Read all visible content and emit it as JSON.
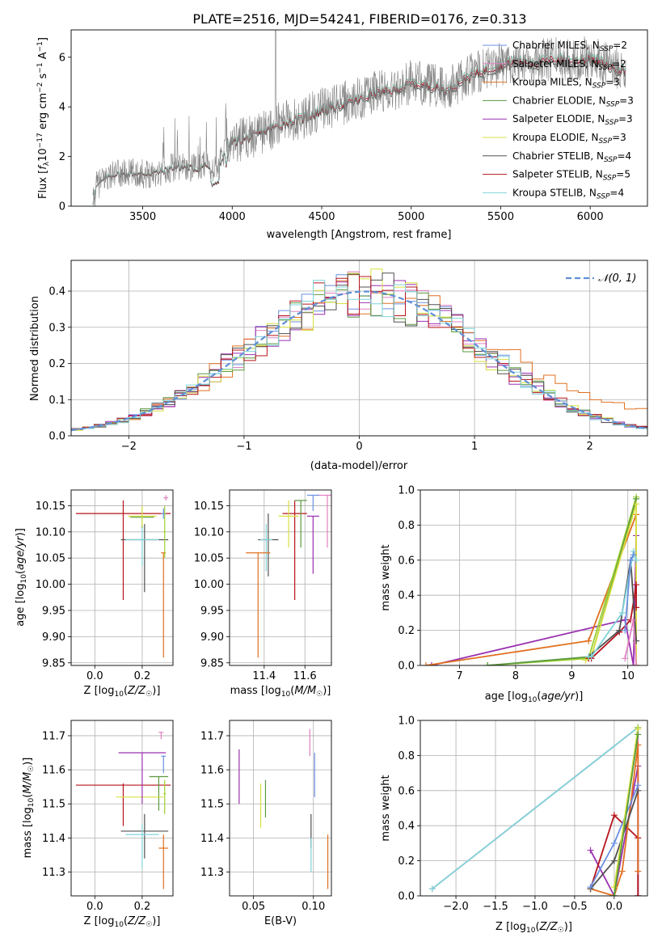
{
  "figure": {
    "title": "PLATE=2516, MJD=54241, FIBERID=0176, z=0.313"
  },
  "colors": {
    "grey": "#808080",
    "red": "#b5151c",
    "orange": "#e07020",
    "purple": "#9b30b0",
    "green": "#5a9a40",
    "yellowgreen": "#c6e03a",
    "lime": "#9fd02f",
    "lightgreen": "#8cc08c",
    "cyan": "#7fd4d8",
    "blue": "#6a90e0",
    "pink": "#e080c0",
    "darkgrey": "#505050",
    "gauss": "#5f8fd5"
  },
  "chart_data": [
    {
      "id": "spectrum",
      "type": "line",
      "xlabel": "wavelength [Angstrom, rest frame]",
      "ylabel": "Flux [f_λ 10^-17 erg cm^-2 s^-1 A^-1]",
      "xlim": [
        3100,
        6320
      ],
      "ylim": [
        0,
        7.1
      ],
      "xticks": [
        3500,
        4000,
        4500,
        5000,
        5500,
        6000
      ],
      "yticks": [
        0,
        2,
        4,
        6
      ],
      "grid": false,
      "legend_position": "right",
      "series": [
        {
          "name": "Chabrier MILES, N_SSP=2",
          "color": "#6a90e0"
        },
        {
          "name": "Salpeter MILES, N_SSP=2",
          "color": "#e080c0"
        },
        {
          "name": "Kroupa MILES, N_SSP=3",
          "color": "#e07020"
        },
        {
          "name": "Chabrier ELODIE, N_SSP=3",
          "color": "#5a9a40"
        },
        {
          "name": "Salpeter ELODIE, N_SSP=3",
          "color": "#9b30b0"
        },
        {
          "name": "Kroupa ELODIE, N_SSP=3",
          "color": "#d8e040"
        },
        {
          "name": "Chabrier STELIB, N_SSP=4",
          "color": "#505050"
        },
        {
          "name": "Salpeter STELIB, N_SSP=5",
          "color": "#b5151c"
        },
        {
          "name": "Kroupa STELIB, N_SSP=4",
          "color": "#7fd4d8"
        }
      ],
      "continuum_x": [
        3220,
        3240,
        3300,
        3350,
        3400,
        3450,
        3500,
        3550,
        3600,
        3650,
        3700,
        3750,
        3800,
        3850,
        3900,
        3950,
        4000,
        4100,
        4200,
        4300,
        4400,
        4500,
        4600,
        4700,
        4800,
        4900,
        5000,
        5100,
        5200,
        5300,
        5400,
        5500,
        5600,
        5700,
        5800,
        5900,
        6000,
        6100,
        6200
      ],
      "continuum_y": [
        0.0,
        0.8,
        1.2,
        1.3,
        1.3,
        1.35,
        1.3,
        1.35,
        1.4,
        1.55,
        1.6,
        1.6,
        1.5,
        1.7,
        1.4,
        2.0,
        2.6,
        2.8,
        3.1,
        3.4,
        3.6,
        3.9,
        4.1,
        4.3,
        4.6,
        4.7,
        5.0,
        4.9,
        4.7,
        5.2,
        5.5,
        5.7,
        5.9,
        5.8,
        6.0,
        5.9,
        6.0,
        5.7,
        5.5
      ]
    },
    {
      "id": "residuals",
      "type": "histogram",
      "xlabel": "(data-model)/error",
      "ylabel": "Normed distribution",
      "xlim": [
        -2.5,
        2.5
      ],
      "ylim": [
        0,
        0.485
      ],
      "xticks": [
        -2,
        -1,
        0,
        1,
        2
      ],
      "yticks": [
        0.0,
        0.1,
        0.2,
        0.3,
        0.4
      ],
      "grid": true,
      "legend": "𝒩(0, 1)",
      "legend_position": "top-right",
      "bin_width": 0.1
    },
    {
      "id": "age-vs-Z",
      "type": "errorbar",
      "xlabel": "Z [log10(Z/Z☉)]",
      "ylabel": "age  [log10(age/yr)]",
      "xlim": [
        -0.1,
        0.33
      ],
      "ylim": [
        9.845,
        10.18
      ],
      "xticks": [
        0.0,
        0.2
      ],
      "yticks": [
        9.85,
        9.9,
        9.95,
        10.0,
        10.05,
        10.1,
        10.15
      ],
      "grid": true,
      "points": [
        {
          "x": 0.12,
          "y": 10.135,
          "xerr": 0.2,
          "yerr": [
            0.165,
            0.025
          ],
          "color": "#b5151c"
        },
        {
          "x": 0.21,
          "y": 10.085,
          "xerr": 0.1,
          "yerr": [
            0.1,
            0.03
          ],
          "color": "#505050"
        },
        {
          "x": 0.2,
          "y": 10.085,
          "xerr": 0.07,
          "yerr": [
            0.05,
            0.03
          ],
          "color": "#7fd4d8"
        },
        {
          "x": 0.2,
          "y": 10.128,
          "xerr": 0.05,
          "yerr": [
            0.02,
            0.02
          ],
          "color": "#5a9a40"
        },
        {
          "x": 0.2,
          "y": 10.13,
          "xerr": 0.06,
          "yerr": [
            0.02,
            0.02
          ],
          "color": "#d8e040"
        },
        {
          "x": 0.3,
          "y": 10.165,
          "xerr": 0.01,
          "yerr": [
            0.005,
            0.005
          ],
          "color": "#e080c0"
        },
        {
          "x": 0.29,
          "y": 10.135,
          "xerr": 0.01,
          "yerr": [
            0.01,
            0.01
          ],
          "color": "#6a90e0"
        },
        {
          "x": 0.29,
          "y": 10.06,
          "xerr": 0.01,
          "yerr": [
            0.2,
            0.0
          ],
          "color": "#e07020"
        },
        {
          "x": 0.295,
          "y": 10.1,
          "xerr": 0.005,
          "yerr": [
            0.05,
            0.05
          ],
          "color": "#9fd02f"
        }
      ]
    },
    {
      "id": "age-vs-mass",
      "type": "errorbar",
      "xlabel": "mass [log10(M/M☉)]",
      "ylabel": "",
      "xlim": [
        11.23,
        11.73
      ],
      "ylim": [
        9.845,
        10.18
      ],
      "xticks": [
        11.4,
        11.6
      ],
      "yticks": [
        9.85,
        9.9,
        9.95,
        10.0,
        10.05,
        10.1,
        10.15
      ],
      "grid": true,
      "points": [
        {
          "x": 11.55,
          "y": 10.135,
          "xerr": 0.06,
          "yerr": [
            0.165,
            0.025
          ],
          "color": "#b5151c"
        },
        {
          "x": 11.42,
          "y": 10.085,
          "xerr": 0.05,
          "yerr": [
            0.07,
            0.05
          ],
          "color": "#505050"
        },
        {
          "x": 11.41,
          "y": 10.085,
          "xerr": 0.03,
          "yerr": [
            0.06,
            0.03
          ],
          "color": "#7fd4d8"
        },
        {
          "x": 11.58,
          "y": 10.16,
          "xerr": 0.03,
          "yerr": [
            0.09,
            0.0
          ],
          "color": "#5a9a40"
        },
        {
          "x": 11.52,
          "y": 10.13,
          "xerr": 0.05,
          "yerr": [
            0.06,
            0.03
          ],
          "color": "#d8e040"
        },
        {
          "x": 11.71,
          "y": 10.17,
          "xerr": 0.05,
          "yerr": [
            0.1,
            0.0
          ],
          "color": "#e080c0"
        },
        {
          "x": 11.64,
          "y": 10.17,
          "xerr": 0.03,
          "yerr": [
            0.03,
            0.0
          ],
          "color": "#6a90e0"
        },
        {
          "x": 11.37,
          "y": 10.06,
          "xerr": 0.06,
          "yerr": [
            0.2,
            0.0
          ],
          "color": "#e07020"
        },
        {
          "x": 11.64,
          "y": 10.13,
          "xerr": 0.03,
          "yerr": [
            0.11,
            0.0
          ],
          "color": "#9b30b0"
        }
      ]
    },
    {
      "id": "weight-vs-age",
      "type": "line",
      "xlabel": "age  [log10(age/yr)]",
      "ylabel": "mass weight",
      "xlim": [
        6.3,
        10.35
      ],
      "ylim": [
        0,
        1.0
      ],
      "xticks": [
        7,
        8,
        9,
        10
      ],
      "yticks": [
        0.0,
        0.2,
        0.4,
        0.6,
        0.8,
        1.0
      ],
      "grid": true,
      "series": [
        {
          "x": [
            6.5,
            9.95,
            10.1,
            10.15
          ],
          "y": [
            0.0,
            0.26,
            0.0,
            0.74
          ],
          "color": "#9b30b0"
        },
        {
          "x": [
            6.4,
            9.3,
            10.15,
            10.15
          ],
          "y": [
            0.0,
            0.14,
            0.86,
            0.0
          ],
          "color": "#e07020"
        },
        {
          "x": [
            7.5,
            9.3,
            10.15
          ],
          "y": [
            0.0,
            0.04,
            0.96
          ],
          "color": "#9fd02f"
        },
        {
          "x": [
            7.5,
            9.35,
            10.15
          ],
          "y": [
            0.0,
            0.05,
            0.95
          ],
          "color": "#5a9a40"
        },
        {
          "x": [
            9.25,
            9.35,
            10.15,
            10.15
          ],
          "y": [
            0.03,
            0.05,
            0.92,
            0.0
          ],
          "color": "#d8e040"
        },
        {
          "x": [
            9.3,
            9.35,
            9.85,
            10.05,
            10.15,
            10.15
          ],
          "y": [
            0.04,
            0.04,
            0.19,
            0.26,
            0.46,
            0.33
          ],
          "color": "#b5151c"
        },
        {
          "x": [
            9.3,
            9.85,
            10.05,
            10.15
          ],
          "y": [
            0.05,
            0.2,
            0.6,
            0.14
          ],
          "color": "#505050"
        },
        {
          "x": [
            9.3,
            9.35,
            9.9,
            10.1,
            10.15
          ],
          "y": [
            0.05,
            0.05,
            0.3,
            0.65,
            0.6
          ],
          "color": "#7fd4d8"
        },
        {
          "x": [
            9.95,
            10.1,
            10.15
          ],
          "y": [
            0.04,
            0.26,
            0.0
          ],
          "color": "#e080c0"
        },
        {
          "x": [
            9.95,
            10.05,
            10.1
          ],
          "y": [
            0.2,
            0.6,
            0.63
          ],
          "color": "#6a90e0"
        }
      ]
    },
    {
      "id": "mass-vs-Z",
      "type": "errorbar",
      "xlabel": "Z [log10(Z/Z☉)]",
      "ylabel": "mass [log10(M/M☉)]",
      "xlim": [
        -0.1,
        0.33
      ],
      "ylim": [
        11.23,
        11.745
      ],
      "xticks": [
        0.0,
        0.2
      ],
      "yticks": [
        11.3,
        11.4,
        11.5,
        11.6,
        11.7
      ],
      "grid": true,
      "points": [
        {
          "x": 0.12,
          "y": 11.555,
          "xerr": 0.2,
          "yerr": [
            0.12,
            0.005
          ],
          "color": "#b5151c"
        },
        {
          "x": 0.21,
          "y": 11.42,
          "xerr": 0.1,
          "yerr": [
            0.08,
            0.05
          ],
          "color": "#505050"
        },
        {
          "x": 0.2,
          "y": 11.41,
          "xerr": 0.07,
          "yerr": [
            0.1,
            0.03
          ],
          "color": "#7fd4d8"
        },
        {
          "x": 0.27,
          "y": 11.58,
          "xerr": 0.04,
          "yerr": [
            0.1,
            0.0
          ],
          "color": "#5a9a40"
        },
        {
          "x": 0.19,
          "y": 11.52,
          "xerr": 0.1,
          "yerr": [
            0.0,
            0.0
          ],
          "color": "#d8e040"
        },
        {
          "x": 0.2,
          "y": 11.65,
          "xerr": 0.1,
          "yerr": [
            0.15,
            0.0
          ],
          "color": "#9b30b0"
        },
        {
          "x": 0.28,
          "y": 11.71,
          "xerr": 0.01,
          "yerr": [
            0.02,
            0.0
          ],
          "color": "#e080c0"
        },
        {
          "x": 0.29,
          "y": 11.64,
          "xerr": 0.01,
          "yerr": [
            0.05,
            0.0
          ],
          "color": "#6a90e0"
        },
        {
          "x": 0.29,
          "y": 11.37,
          "xerr": 0.02,
          "yerr": [
            0.12,
            0.04
          ],
          "color": "#e07020"
        },
        {
          "x": 0.295,
          "y": 11.53,
          "xerr": 0.005,
          "yerr": [
            0.06,
            0.04
          ],
          "color": "#9fd02f"
        }
      ]
    },
    {
      "id": "mass-vs-EBV",
      "type": "errorbar",
      "xlabel": "E(B-V)",
      "ylabel": "",
      "xlim": [
        0.03,
        0.115
      ],
      "ylim": [
        11.23,
        11.745
      ],
      "xticks": [
        0.05,
        0.1
      ],
      "yticks": [
        11.3,
        11.4,
        11.5,
        11.6,
        11.7
      ],
      "grid": true,
      "points": [
        {
          "x": 0.038,
          "y": 11.58,
          "yerr": [
            0.08,
            0.08
          ],
          "color": "#9b30b0"
        },
        {
          "x": 0.056,
          "y": 11.5,
          "yerr": [
            0.07,
            0.06
          ],
          "color": "#d8e040"
        },
        {
          "x": 0.06,
          "y": 11.52,
          "yerr": [
            0.06,
            0.05
          ],
          "color": "#5a9a40"
        },
        {
          "x": 0.097,
          "y": 11.68,
          "yerr": [
            0.04,
            0.04
          ],
          "color": "#e080c0"
        },
        {
          "x": 0.098,
          "y": 11.42,
          "yerr": [
            0.05,
            0.05
          ],
          "color": "#505050"
        },
        {
          "x": 0.098,
          "y": 11.35,
          "yerr": [
            0.05,
            0.05
          ],
          "color": "#7fd4d8"
        },
        {
          "x": 0.101,
          "y": 11.58,
          "yerr": [
            0.06,
            0.07
          ],
          "color": "#6a90e0"
        },
        {
          "x": 0.112,
          "y": 11.33,
          "yerr": [
            0.08,
            0.08
          ],
          "color": "#e07020"
        }
      ]
    },
    {
      "id": "weight-vs-Z",
      "type": "line",
      "xlabel": "Z [log10(Z/Z☉)]",
      "ylabel": "mass weight",
      "xlim": [
        -2.45,
        0.42
      ],
      "ylim": [
        0,
        1.0
      ],
      "xticks": [
        -2.0,
        -1.5,
        -1.0,
        -0.5,
        0.0
      ],
      "yticks": [
        0.0,
        0.2,
        0.4,
        0.6,
        0.8,
        1.0
      ],
      "grid": true,
      "series": [
        {
          "x": [
            -2.3,
            0.3,
            0.3
          ],
          "y": [
            0.04,
            0.96,
            0.0
          ],
          "color": "#e080c0"
        },
        {
          "x": [
            -2.3,
            0.3
          ],
          "y": [
            0.04,
            0.96
          ],
          "color": "#7fd4d8"
        },
        {
          "x": [
            -0.3,
            0.0,
            0.3,
            0.3
          ],
          "y": [
            0.26,
            0.0,
            0.74,
            0.0
          ],
          "color": "#9b30b0"
        },
        {
          "x": [
            -0.3,
            0.0,
            0.3,
            0.3
          ],
          "y": [
            0.04,
            0.46,
            0.33,
            0.0
          ],
          "color": "#b5151c"
        },
        {
          "x": [
            -0.3,
            0.0,
            0.1,
            0.3,
            0.3
          ],
          "y": [
            0.04,
            0.0,
            0.14,
            0.86,
            0.14
          ],
          "color": "#e07020"
        },
        {
          "x": [
            -0.3,
            0.0,
            0.3
          ],
          "y": [
            0.04,
            0.2,
            0.6
          ],
          "color": "#505050"
        },
        {
          "x": [
            -0.3,
            0.0,
            0.3
          ],
          "y": [
            0.05,
            0.3,
            0.63
          ],
          "color": "#6a90e0"
        },
        {
          "x": [
            0.0,
            0.3
          ],
          "y": [
            0.0,
            0.96
          ],
          "color": "#9fd02f"
        },
        {
          "x": [
            0.0,
            0.3
          ],
          "y": [
            0.05,
            0.95
          ],
          "color": "#d8e040"
        },
        {
          "x": [
            0.0,
            0.3
          ],
          "y": [
            0.0,
            0.92
          ],
          "color": "#5a9a40"
        }
      ]
    }
  ]
}
